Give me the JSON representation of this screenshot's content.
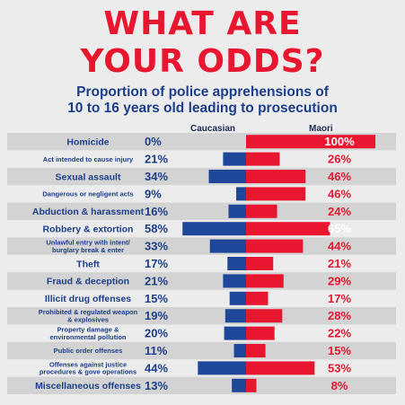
{
  "header": {
    "title_line1": "WHAT ARE",
    "title_line2": "YOUR ODDS?",
    "subtitle_line1": "Proportion of police apprehensions of",
    "subtitle_line2": "10 to 16 years old leading to prosecution",
    "col_left": "Caucasian",
    "col_right": "Maori"
  },
  "colors": {
    "title": "#e8162f",
    "text": "#1d3e8a",
    "caucasian_bar": "#1e4799",
    "maori_bar": "#e8162f",
    "stripe": "#d3d3d3"
  },
  "chart_data": {
    "type": "bar",
    "orientation": "horizontal-butterfly",
    "categories": [
      "Homicide",
      "Act intended to cause injury",
      "Sexual assault",
      "Dangerous or negligent acts",
      "Abduction & harassment",
      "Robbery & extortion",
      "Unlawful entry with intent/ burglary break & enter",
      "Theft",
      "Fraud & deception",
      "Illicit drug offenses",
      "Prohibited & regulated weapon & explosives",
      "Property damage & environmental pollution",
      "Public order offenses",
      "Offenses against justice procedures & gove operations",
      "Miscellaneous offenses"
    ],
    "category_lines": [
      [
        "Homicide"
      ],
      [
        "Act intended to cause injury"
      ],
      [
        "Sexual assault"
      ],
      [
        "Dangerous or negligent acts"
      ],
      [
        "Abduction & harassment"
      ],
      [
        "Robbery & extortion"
      ],
      [
        "Unlawful entry with intent/",
        "burglary break & enter"
      ],
      [
        "Theft"
      ],
      [
        "Fraud & deception"
      ],
      [
        "Illicit drug offenses"
      ],
      [
        "Prohibited & regulated weapon",
        "& explosives"
      ],
      [
        "Property damage &",
        "environmental pollution"
      ],
      [
        "Public order offenses"
      ],
      [
        "Offenses against justice",
        "procedures & gove operations"
      ],
      [
        "Miscellaneous offenses"
      ]
    ],
    "label_style": [
      "large",
      "small",
      "large",
      "small",
      "large",
      "large",
      "small",
      "large",
      "large",
      "large",
      "small",
      "small",
      "small",
      "small",
      "large"
    ],
    "series": [
      {
        "name": "Caucasian",
        "values": [
          0,
          21,
          34,
          9,
          16,
          58,
          33,
          17,
          21,
          15,
          19,
          20,
          11,
          44,
          13
        ],
        "labels": [
          "0%",
          "21%",
          "34%",
          "9%",
          "16%",
          "58%",
          "33%",
          "17%",
          "21%",
          "15%",
          "19%",
          "20%",
          "11%",
          "44%",
          "13%"
        ]
      },
      {
        "name": "Maori",
        "values": [
          100,
          26,
          46,
          46,
          24,
          65,
          44,
          21,
          29,
          17,
          28,
          22,
          15,
          53,
          8
        ],
        "labels": [
          "100%",
          "26%",
          "46%",
          "46%",
          "24%",
          "65%",
          "44%",
          "21%",
          "29%",
          "17%",
          "28%",
          "22%",
          "15%",
          "53%",
          "8%"
        ]
      }
    ],
    "unit": "%",
    "xlim": [
      0,
      100
    ]
  }
}
